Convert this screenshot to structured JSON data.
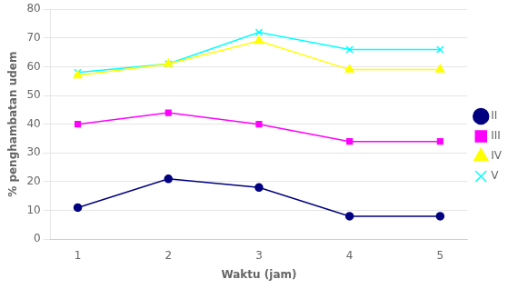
{
  "chart_data": {
    "type": "line",
    "xlabel": "Waktu (jam)",
    "ylabel": "% penghambatan udem",
    "x": [
      1,
      2,
      3,
      4,
      5
    ],
    "series": [
      {
        "name": "II",
        "color": "#000080",
        "marker": "circle",
        "values": [
          11,
          21,
          18,
          8,
          8
        ]
      },
      {
        "name": "III",
        "color": "#FF00FF",
        "marker": "square",
        "values": [
          40,
          44,
          40,
          34,
          34
        ]
      },
      {
        "name": "IV",
        "color": "#FFFF00",
        "marker": "triangle",
        "values": [
          57,
          61,
          69,
          59,
          59
        ]
      },
      {
        "name": "V",
        "color": "#00FFFF",
        "marker": "x",
        "values": [
          58,
          61,
          72,
          66,
          66
        ]
      }
    ],
    "xlim": [
      0.7,
      5.3
    ],
    "xticks": [
      1,
      2,
      3,
      4,
      5
    ],
    "ylim": [
      0,
      80
    ],
    "yticks": [
      0,
      10,
      20,
      30,
      40,
      50,
      60,
      70,
      80
    ],
    "grid": "y",
    "legend": "right"
  }
}
